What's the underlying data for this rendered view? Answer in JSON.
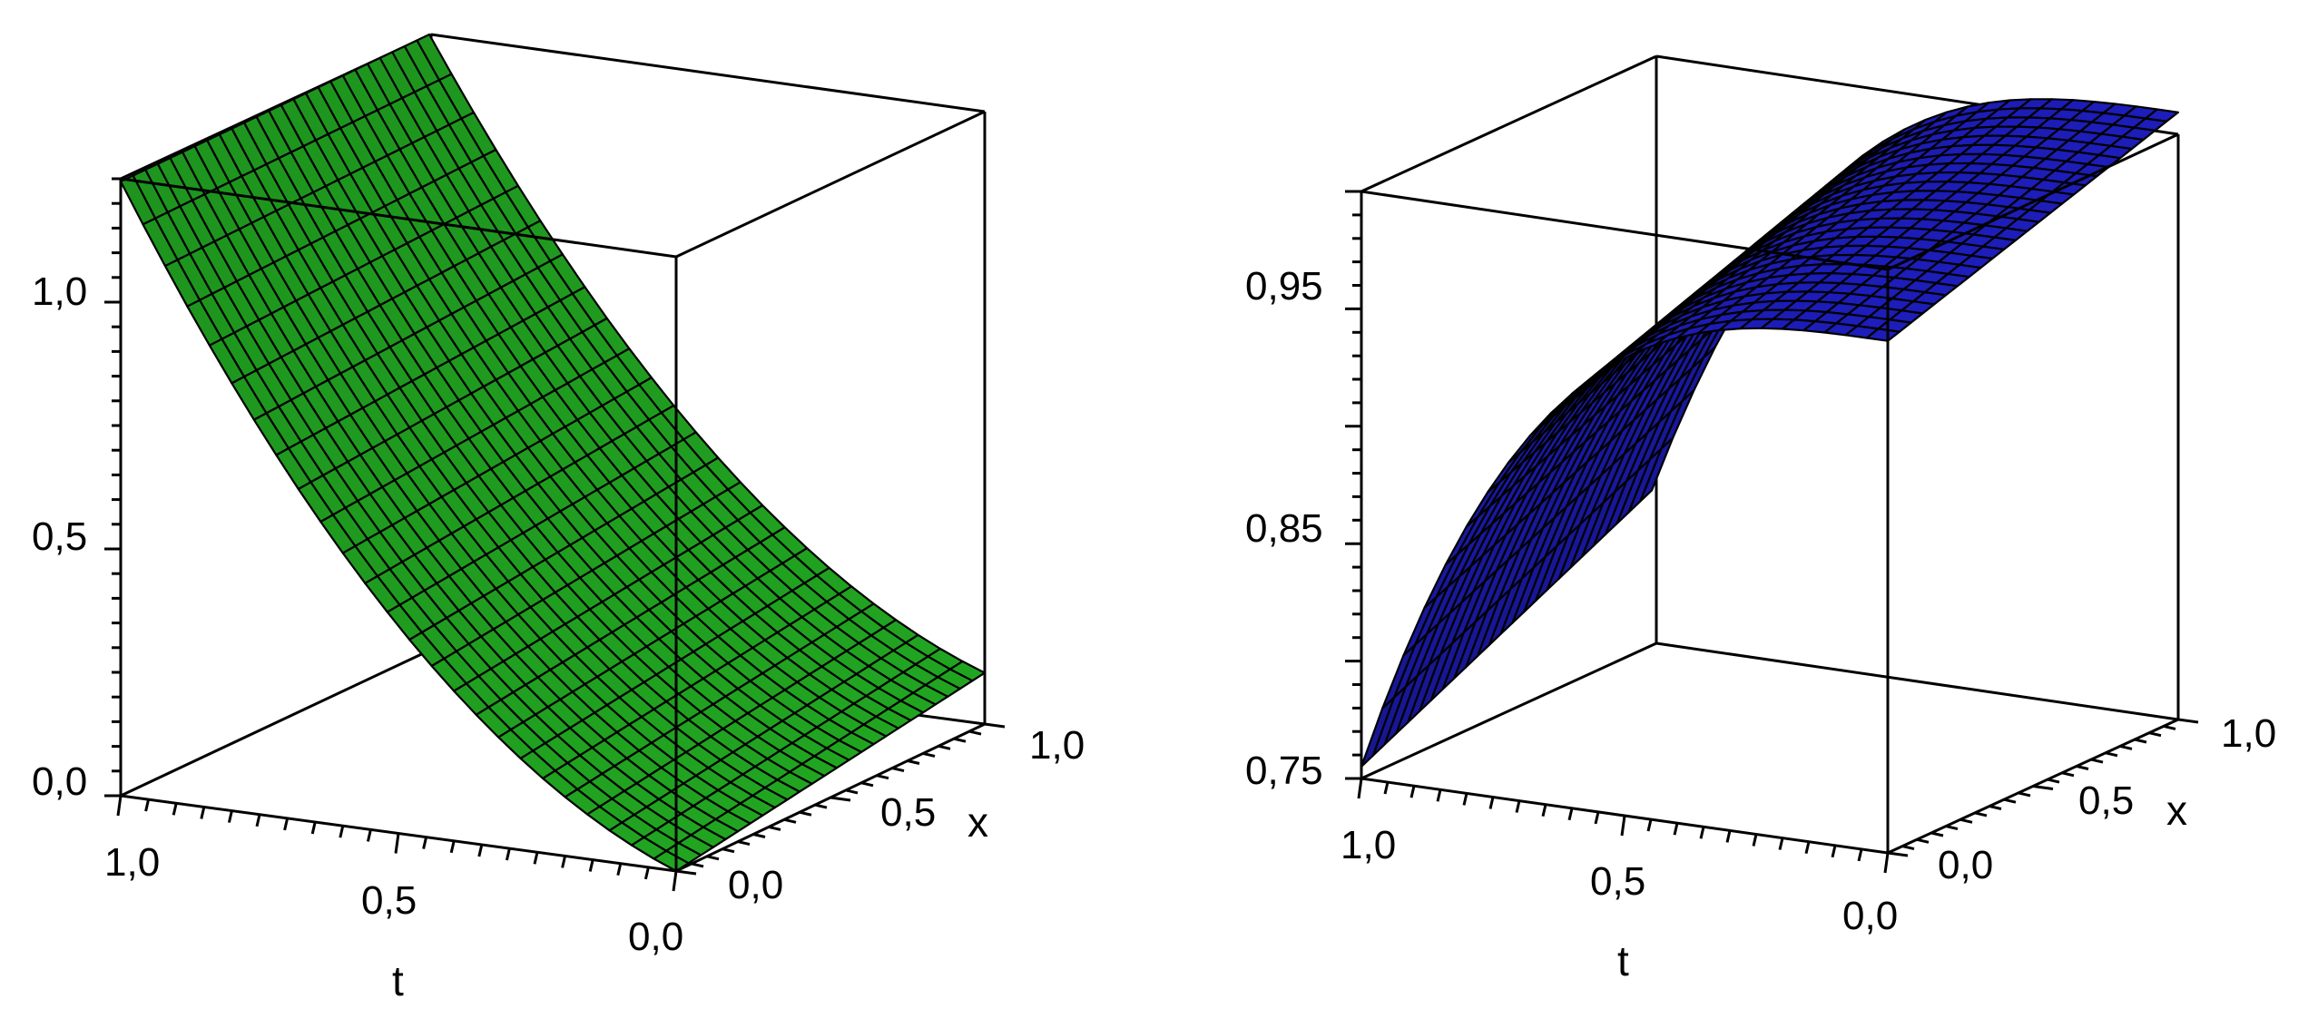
{
  "chart_data": [
    {
      "type": "surface3d",
      "x_axis_label": "x",
      "t_axis_label": "t",
      "x_range": [
        0.0,
        1.0
      ],
      "t_range": [
        0.0,
        1.0
      ],
      "z_range": [
        0.0,
        1.2
      ],
      "x_ticks": [
        "0,0",
        "0,5",
        "1,0"
      ],
      "t_ticks": [
        "1,0",
        "0,5",
        "0,0"
      ],
      "z_ticks": [
        "0,0",
        "0,5",
        "1,0"
      ],
      "surface_color": "#1f9a1f",
      "description_points": [
        {
          "t": 1.0,
          "x": 0.0,
          "z": 1.2
        },
        {
          "t": 1.0,
          "x": 1.0,
          "z": 1.2
        },
        {
          "t": 0.0,
          "x": 0.0,
          "z": 0.0
        },
        {
          "t": 0.0,
          "x": 1.0,
          "z": 0.1
        }
      ]
    },
    {
      "type": "surface3d",
      "x_axis_label": "x",
      "t_axis_label": "t",
      "x_range": [
        0.0,
        1.0
      ],
      "t_range": [
        0.0,
        1.0
      ],
      "z_range": [
        0.75,
        1.0
      ],
      "x_ticks": [
        "0,0",
        "0,5",
        "1,0"
      ],
      "t_ticks": [
        "1,0",
        "0,5",
        "0,0"
      ],
      "z_ticks": [
        "0,75",
        "0,85",
        "0,95"
      ],
      "surface_color": "#1a1aa8",
      "description_points": [
        {
          "t": 1.0,
          "x": 0.0,
          "z": 0.75
        },
        {
          "t": 0.0,
          "x": 0.0,
          "z": 0.96
        },
        {
          "t": 0.0,
          "x": 1.0,
          "z": 1.0
        }
      ]
    }
  ]
}
